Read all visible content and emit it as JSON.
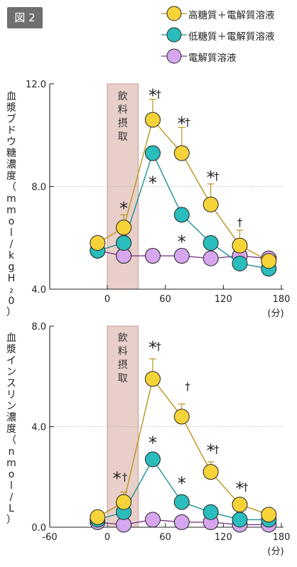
{
  "figure_label": "図 2",
  "legend": [
    {
      "label": "高糖質＋電解質溶液",
      "color": "#f7d33a"
    },
    {
      "label": "低糖質＋電解質溶液",
      "color": "#2bbcbc"
    },
    {
      "label": "電解質溶液",
      "color": "#d6a6ef"
    }
  ],
  "drink_label": [
    "飲",
    "料",
    "摂",
    "取"
  ],
  "x_unit": "(分)",
  "chart_data": [
    {
      "type": "line",
      "ylabel": "血漿ブドウ糖濃度（mmol/kgH₂0）",
      "ylim": [
        4.0,
        12.0
      ],
      "yticks": [
        "4.0",
        "8.0",
        "12.0"
      ],
      "xlim": [
        -20,
        180
      ],
      "xticks": [
        "0",
        "60",
        "120",
        "180"
      ],
      "drink_window": [
        0,
        32
      ],
      "series": [
        {
          "name": "高糖質＋電解質溶液",
          "x": [
            -10,
            17,
            47,
            77,
            107,
            137,
            167
          ],
          "y": [
            5.8,
            6.4,
            10.6,
            9.3,
            7.3,
            5.7,
            5.1
          ],
          "err": [
            0,
            0.5,
            0.8,
            1.0,
            0.8,
            0.6,
            0
          ]
        },
        {
          "name": "低糖質＋電解質溶液",
          "x": [
            -10,
            17,
            47,
            77,
            107,
            137,
            167
          ],
          "y": [
            5.5,
            5.8,
            9.3,
            6.9,
            5.8,
            5.0,
            4.8
          ],
          "err": [
            0,
            0,
            0,
            0,
            0,
            0,
            0
          ]
        },
        {
          "name": "電解質溶液",
          "x": [
            -10,
            17,
            47,
            77,
            107,
            137,
            167
          ],
          "y": [
            5.5,
            5.3,
            5.3,
            5.3,
            5.2,
            5.3,
            5.2
          ],
          "err": [
            0,
            0,
            0,
            0,
            0,
            0,
            0
          ]
        }
      ],
      "annotations": [
        {
          "text": "*",
          "x": 47,
          "y": 11.6
        },
        {
          "text": "†",
          "x": 53,
          "y": 11.6
        },
        {
          "text": "*",
          "x": 77,
          "y": 10.5
        },
        {
          "text": "†",
          "x": 83,
          "y": 10.5
        },
        {
          "text": "*",
          "x": 107,
          "y": 8.4
        },
        {
          "text": "†",
          "x": 113,
          "y": 8.4
        },
        {
          "text": "†",
          "x": 137,
          "y": 6.6
        },
        {
          "text": "*",
          "x": 17,
          "y": 7.2
        },
        {
          "text": "*",
          "x": 47,
          "y": 8.2
        },
        {
          "text": "*",
          "x": 77,
          "y": 5.9
        }
      ]
    },
    {
      "type": "line",
      "ylabel": "血漿インスリン濃度（nmol/L）",
      "ylim": [
        0.0,
        8.0
      ],
      "yticks": [
        "0.0",
        "4.0",
        "8.0"
      ],
      "xlim": [
        -20,
        180
      ],
      "xticks": [
        "-60",
        "0",
        "60",
        "120",
        "180"
      ],
      "drink_window": [
        0,
        32
      ],
      "series": [
        {
          "name": "高糖質＋電解質溶液",
          "x": [
            -10,
            17,
            47,
            77,
            107,
            137,
            167
          ],
          "y": [
            0.4,
            1.0,
            5.9,
            4.4,
            2.2,
            0.9,
            0.5
          ],
          "err": [
            0,
            0.4,
            0.8,
            0.5,
            0.4,
            0,
            0
          ]
        },
        {
          "name": "低糖質＋電解質溶液",
          "x": [
            -10,
            17,
            47,
            77,
            107,
            137,
            167
          ],
          "y": [
            0.3,
            0.6,
            2.7,
            1.0,
            0.6,
            0.3,
            0.3
          ],
          "err": [
            0,
            0,
            0,
            0,
            0,
            0,
            0
          ]
        },
        {
          "name": "電解質溶液",
          "x": [
            -10,
            17,
            47,
            77,
            107,
            137,
            167
          ],
          "y": [
            0.2,
            0.1,
            0.3,
            0.2,
            0.2,
            0.1,
            0.1
          ],
          "err": [
            0,
            0,
            0,
            0,
            0,
            0,
            0
          ]
        }
      ],
      "annotations": [
        {
          "text": "*",
          "x": 47,
          "y": 7.2
        },
        {
          "text": "†",
          "x": 53,
          "y": 7.2
        },
        {
          "text": "†",
          "x": 83,
          "y": 5.6
        },
        {
          "text": "*",
          "x": 107,
          "y": 3.1
        },
        {
          "text": "†",
          "x": 113,
          "y": 3.1
        },
        {
          "text": "*",
          "x": 137,
          "y": 1.6
        },
        {
          "text": "†",
          "x": 143,
          "y": 1.6
        },
        {
          "text": "*",
          "x": 10,
          "y": 2.0
        },
        {
          "text": "†",
          "x": 18,
          "y": 2.0
        },
        {
          "text": "*",
          "x": 47,
          "y": 3.4
        },
        {
          "text": "*",
          "x": 77,
          "y": 1.8
        }
      ]
    }
  ]
}
